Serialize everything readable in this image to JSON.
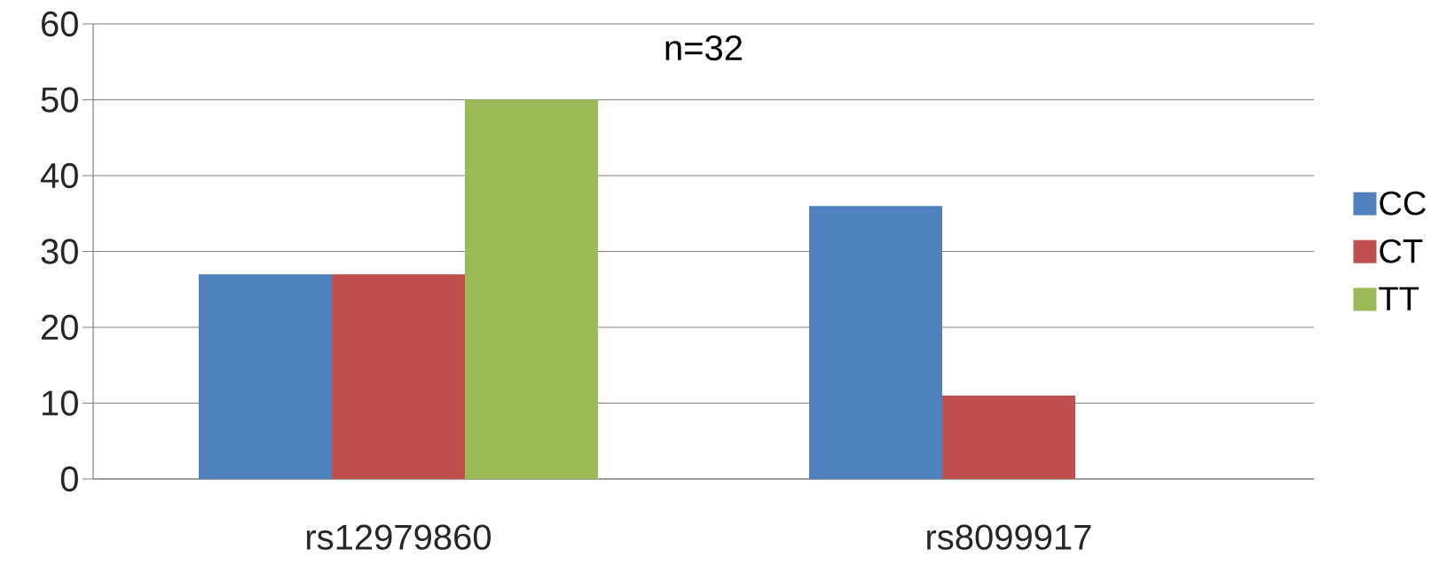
{
  "chart_data": {
    "type": "bar",
    "title": "n=32",
    "categories": [
      "rs12979860",
      "rs8099917"
    ],
    "series": [
      {
        "name": "CC",
        "color": "#4f81bd",
        "values": [
          27,
          36
        ]
      },
      {
        "name": "CT",
        "color": "#c0504d",
        "values": [
          27,
          11
        ]
      },
      {
        "name": "TT",
        "color": "#9bbb59",
        "values": [
          50,
          null
        ]
      }
    ],
    "ylim": [
      0,
      60
    ],
    "yticks": [
      0,
      10,
      20,
      30,
      40,
      50,
      60
    ],
    "grid": "y",
    "legend": "right"
  }
}
